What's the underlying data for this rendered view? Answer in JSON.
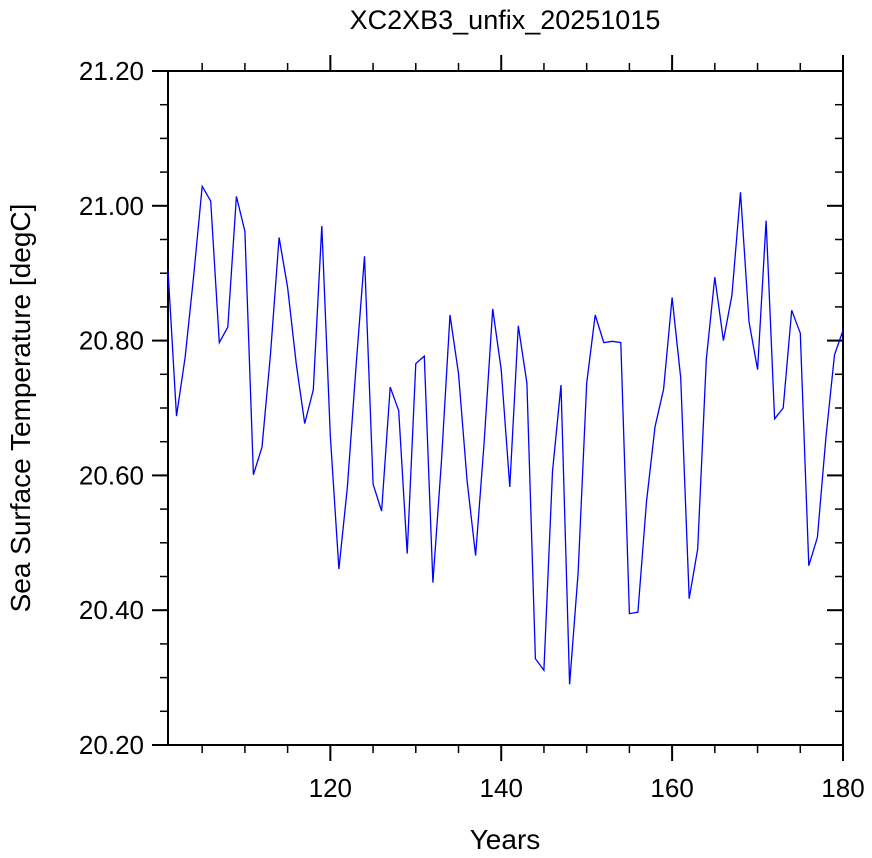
{
  "chart_data": {
    "type": "line",
    "title": "XC2XB3_unfix_20251015",
    "xlabel": "Years",
    "ylabel": "Sea Surface Temperature [degC]",
    "xlim": [
      101,
      180
    ],
    "ylim": [
      20.2,
      21.2
    ],
    "x_ticks": [
      120,
      140,
      160,
      180
    ],
    "x_tick_labels": [
      "120",
      "140",
      "160",
      "180"
    ],
    "y_ticks": [
      20.2,
      20.4,
      20.6,
      20.8,
      21.0,
      21.2
    ],
    "y_tick_labels": [
      "20.20",
      "20.40",
      "20.60",
      "20.80",
      "21.00",
      "21.20"
    ],
    "grid": false,
    "series": [
      {
        "color": "#0000ff",
        "x": [
          101,
          102,
          103,
          104,
          105,
          106,
          107,
          108,
          109,
          110,
          111,
          112,
          113,
          114,
          115,
          116,
          117,
          118,
          119,
          120,
          121,
          122,
          123,
          124,
          125,
          126,
          127,
          128,
          129,
          130,
          131,
          132,
          133,
          134,
          135,
          136,
          137,
          138,
          139,
          140,
          141,
          142,
          143,
          144,
          145,
          146,
          147,
          148,
          149,
          150,
          151,
          152,
          153,
          154,
          155,
          156,
          157,
          158,
          159,
          160,
          161,
          162,
          163,
          164,
          165,
          166,
          167,
          168,
          169,
          170,
          171,
          172,
          173,
          174,
          175,
          176,
          177,
          178,
          179,
          180
        ],
        "values": [
          20.905,
          20.688,
          20.775,
          20.895,
          21.029,
          21.007,
          20.797,
          20.82,
          21.014,
          20.962,
          20.601,
          20.642,
          20.78,
          20.953,
          20.879,
          20.766,
          20.677,
          20.727,
          20.97,
          20.659,
          20.461,
          20.583,
          20.761,
          20.925,
          20.587,
          20.547,
          20.731,
          20.696,
          20.484,
          20.766,
          20.777,
          20.441,
          20.62,
          20.838,
          20.751,
          20.592,
          20.481,
          20.648,
          20.847,
          20.757,
          20.583,
          20.822,
          20.737,
          20.328,
          20.311,
          20.606,
          20.734,
          20.29,
          20.455,
          20.737,
          20.838,
          20.797,
          20.799,
          20.797,
          20.395,
          20.397,
          20.561,
          20.672,
          20.728,
          20.864,
          20.745,
          20.417,
          20.491,
          20.772,
          20.894,
          20.8,
          20.867,
          21.02,
          20.828,
          20.757,
          20.978,
          20.684,
          20.7,
          20.845,
          20.811,
          20.466,
          20.508,
          20.656,
          20.779,
          20.815
        ]
      }
    ]
  }
}
